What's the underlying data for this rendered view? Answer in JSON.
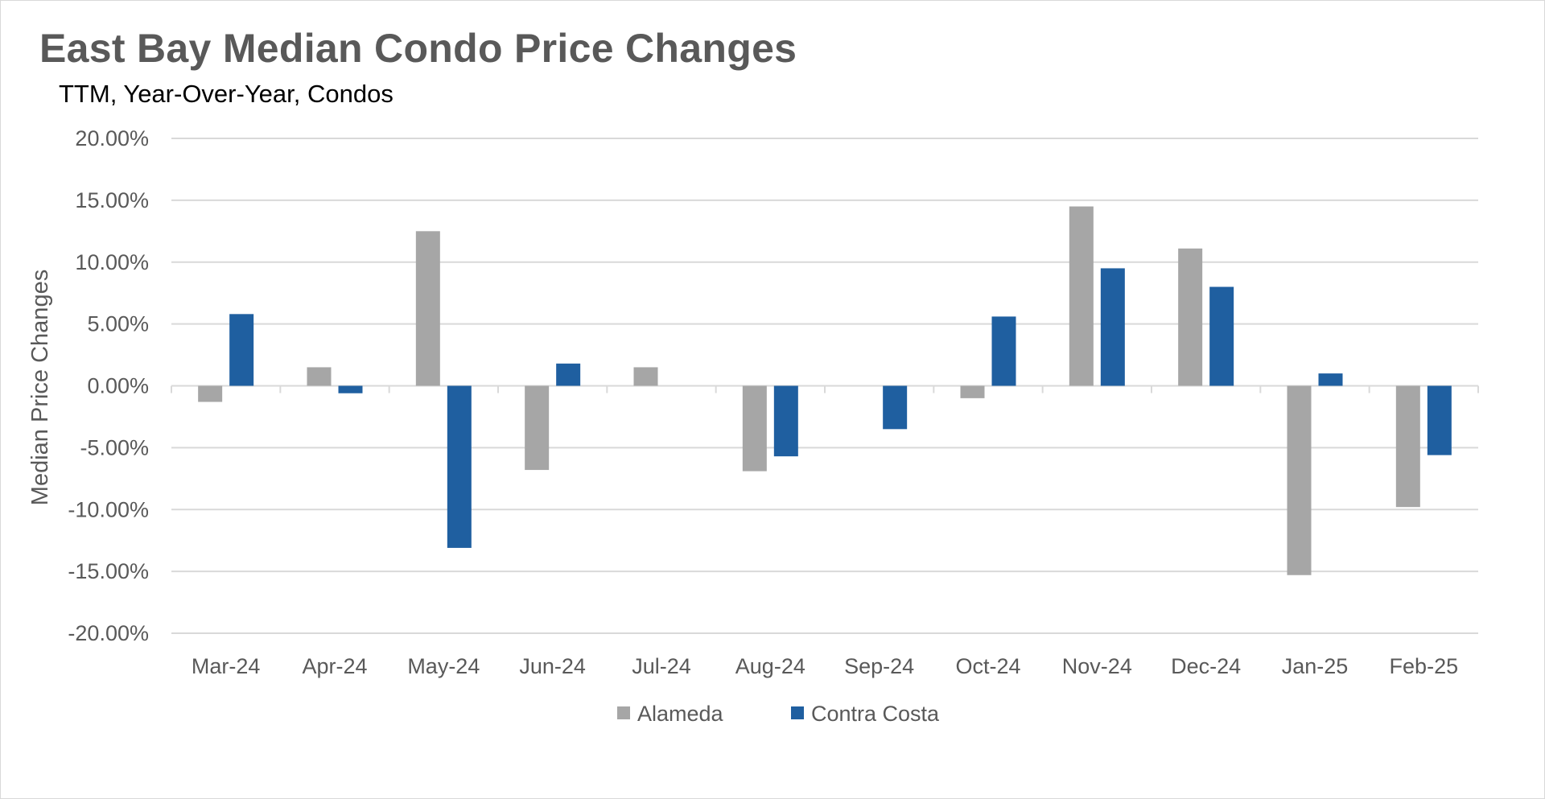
{
  "chart_data": {
    "type": "bar",
    "title": "East Bay Median Condo Price Changes",
    "subtitle": "TTM, Year-Over-Year, Condos",
    "xlabel": "",
    "ylabel": "Median Price Changes",
    "ylim": [
      -0.2,
      0.2
    ],
    "yticks": [
      0.2,
      0.15,
      0.1,
      0.05,
      0.0,
      -0.05,
      -0.1,
      -0.15,
      -0.2
    ],
    "ytick_labels": [
      "20.00%",
      "15.00%",
      "10.00%",
      "5.00%",
      "0.00%",
      "-5.00%",
      "-10.00%",
      "-15.00%",
      "-20.00%"
    ],
    "categories": [
      "Mar-24",
      "Apr-24",
      "May-24",
      "Jun-24",
      "Jul-24",
      "Aug-24",
      "Sep-24",
      "Oct-24",
      "Nov-24",
      "Dec-24",
      "Jan-25",
      "Feb-25"
    ],
    "series": [
      {
        "name": "Alameda",
        "color": "#a6a6a6",
        "values": [
          -0.013,
          0.015,
          0.125,
          -0.068,
          0.015,
          -0.069,
          0.0,
          -0.01,
          0.145,
          0.111,
          -0.153,
          -0.098
        ]
      },
      {
        "name": "Contra Costa",
        "color": "#1f5fa0",
        "values": [
          0.058,
          -0.006,
          -0.131,
          0.018,
          0.0,
          -0.057,
          -0.035,
          0.056,
          0.095,
          0.08,
          0.01,
          -0.056
        ]
      }
    ],
    "grid": true,
    "legend_position": "bottom"
  }
}
